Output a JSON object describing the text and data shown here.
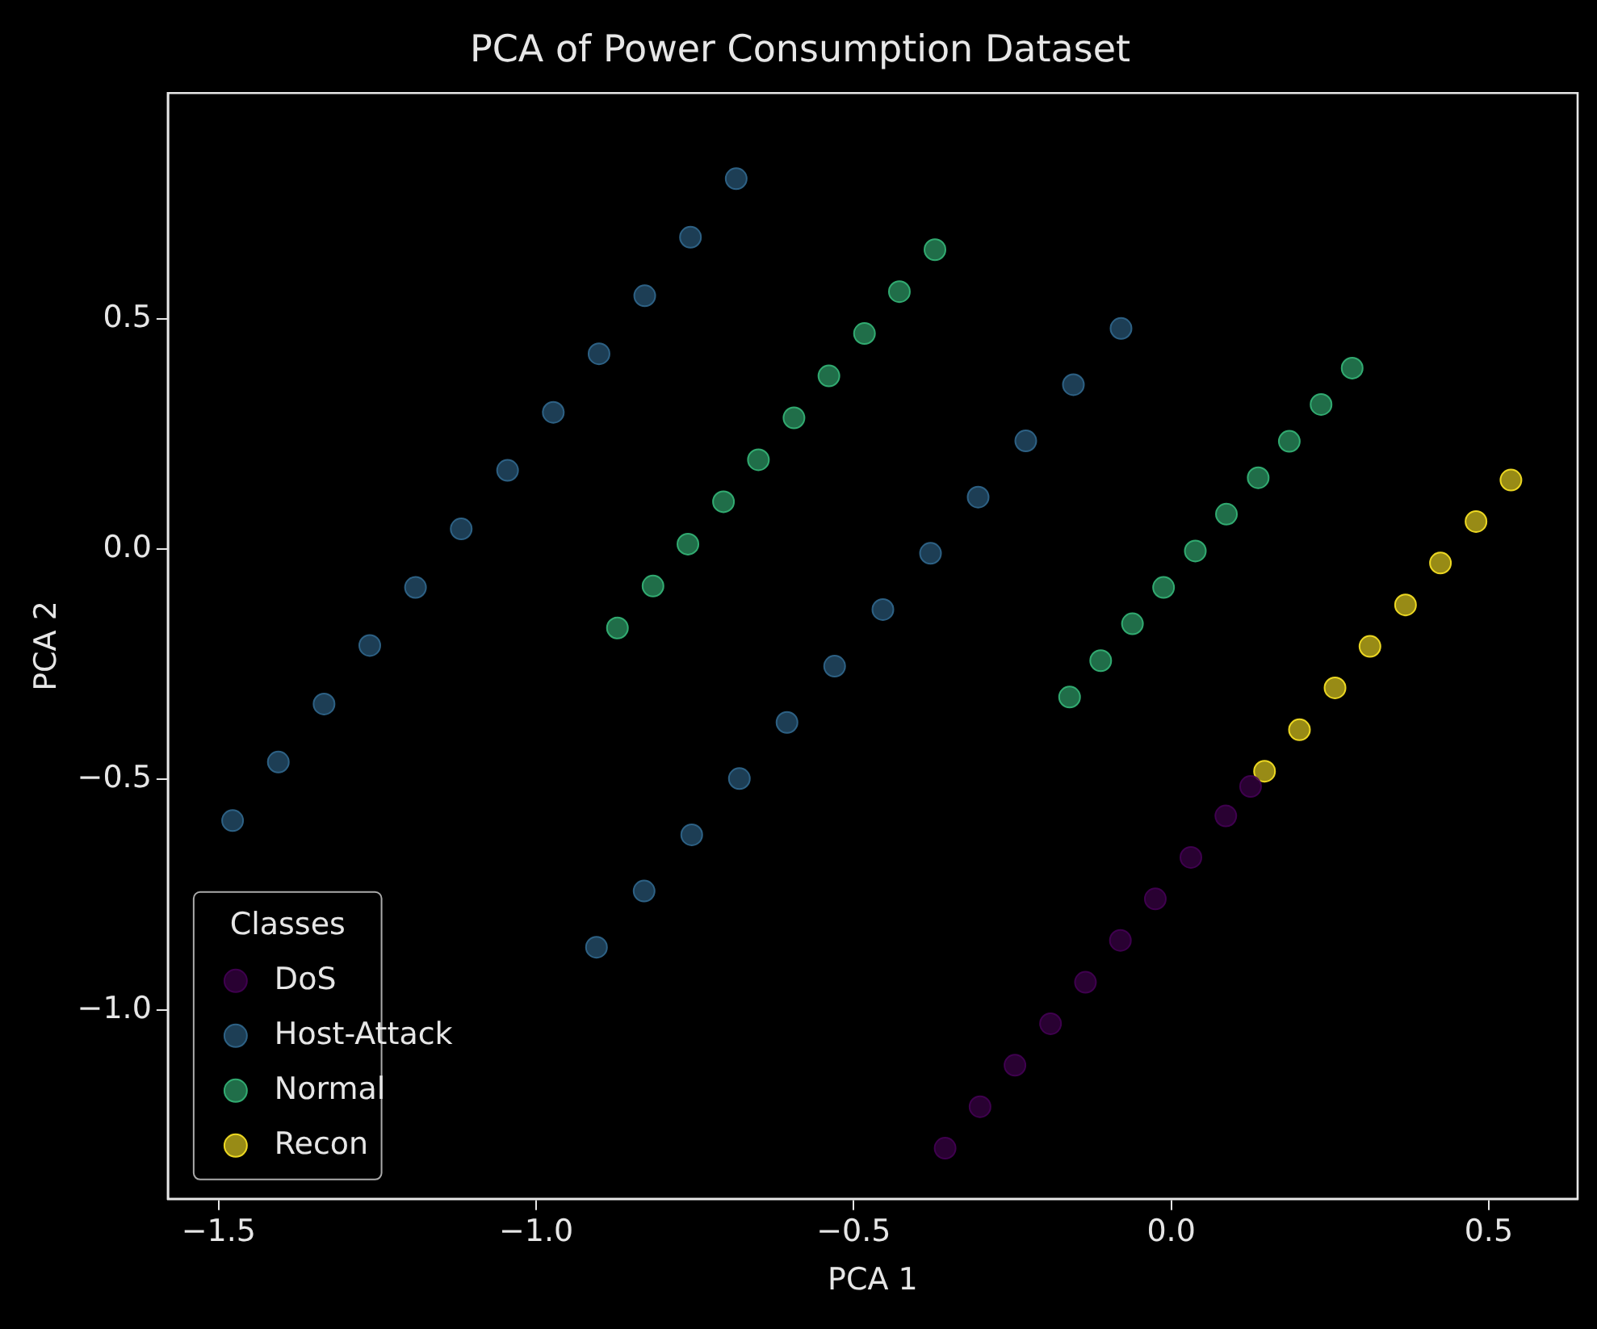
{
  "chart_data": {
    "type": "scatter",
    "title": "PCA of Power Consumption Dataset",
    "xlabel": "PCA 1",
    "ylabel": "PCA 2",
    "legend_title": "Classes",
    "legend": "bottom left",
    "marker": "circle",
    "grid": false,
    "xlim": [
      -1.58,
      0.64
    ],
    "xticks": [
      {
        "value": -1.5,
        "label": "−1.5"
      },
      {
        "value": -1.0,
        "label": "−1.0"
      },
      {
        "value": -0.5,
        "label": "−0.5"
      },
      {
        "value": 0.0,
        "label": "0.0"
      },
      {
        "value": 0.5,
        "label": "0.5"
      }
    ],
    "ylim": [
      -1.41,
      0.99
    ],
    "yticks": [
      {
        "value": -1.0,
        "label": "−1.0"
      },
      {
        "value": -0.5,
        "label": "−0.5"
      },
      {
        "value": 0.0,
        "label": "0.0"
      },
      {
        "value": 0.5,
        "label": "0.5"
      }
    ],
    "series": [
      {
        "name": "DoS",
        "color": "#440154",
        "x": [
          -0.356,
          -0.301,
          -0.246,
          -0.19,
          -0.135,
          -0.08,
          -0.025,
          0.031,
          0.086,
          0.125
        ],
        "values": [
          -1.3,
          -1.21,
          -1.12,
          -1.03,
          -0.94,
          -0.849,
          -0.759,
          -0.669,
          -0.579,
          -0.515
        ]
      },
      {
        "name": "Host-Attack",
        "color": "#31688e",
        "x": [
          -1.478,
          -1.406,
          -1.334,
          -1.262,
          -1.19,
          -1.118,
          -1.045,
          -0.973,
          -0.901,
          -0.829,
          -0.757,
          -0.685,
          -0.905,
          -0.83,
          -0.755,
          -0.68,
          -0.605,
          -0.53,
          -0.454,
          -0.379,
          -0.304,
          -0.229,
          -0.154,
          -0.079
        ],
        "values": [
          -0.589,
          -0.462,
          -0.336,
          -0.209,
          -0.083,
          0.044,
          0.171,
          0.297,
          0.424,
          0.55,
          0.677,
          0.804,
          -0.864,
          -0.742,
          -0.62,
          -0.498,
          -0.376,
          -0.254,
          -0.131,
          -0.009,
          0.113,
          0.235,
          0.357,
          0.479
        ]
      },
      {
        "name": "Normal",
        "color": "#35b779",
        "x": [
          -0.872,
          -0.816,
          -0.761,
          -0.705,
          -0.65,
          -0.594,
          -0.539,
          -0.483,
          -0.428,
          -0.372,
          -0.16,
          -0.111,
          -0.061,
          -0.012,
          0.038,
          0.087,
          0.137,
          0.186,
          0.236,
          0.285
        ],
        "values": [
          -0.171,
          -0.08,
          0.011,
          0.103,
          0.194,
          0.285,
          0.376,
          0.468,
          0.559,
          0.65,
          -0.321,
          -0.242,
          -0.162,
          -0.083,
          -0.004,
          0.076,
          0.155,
          0.234,
          0.314,
          0.393
        ]
      },
      {
        "name": "Recon",
        "color": "#fde725",
        "x": [
          0.147,
          0.202,
          0.258,
          0.313,
          0.369,
          0.424,
          0.48,
          0.535
        ],
        "values": [
          -0.482,
          -0.392,
          -0.301,
          -0.211,
          -0.121,
          -0.03,
          0.06,
          0.15
        ]
      }
    ]
  }
}
